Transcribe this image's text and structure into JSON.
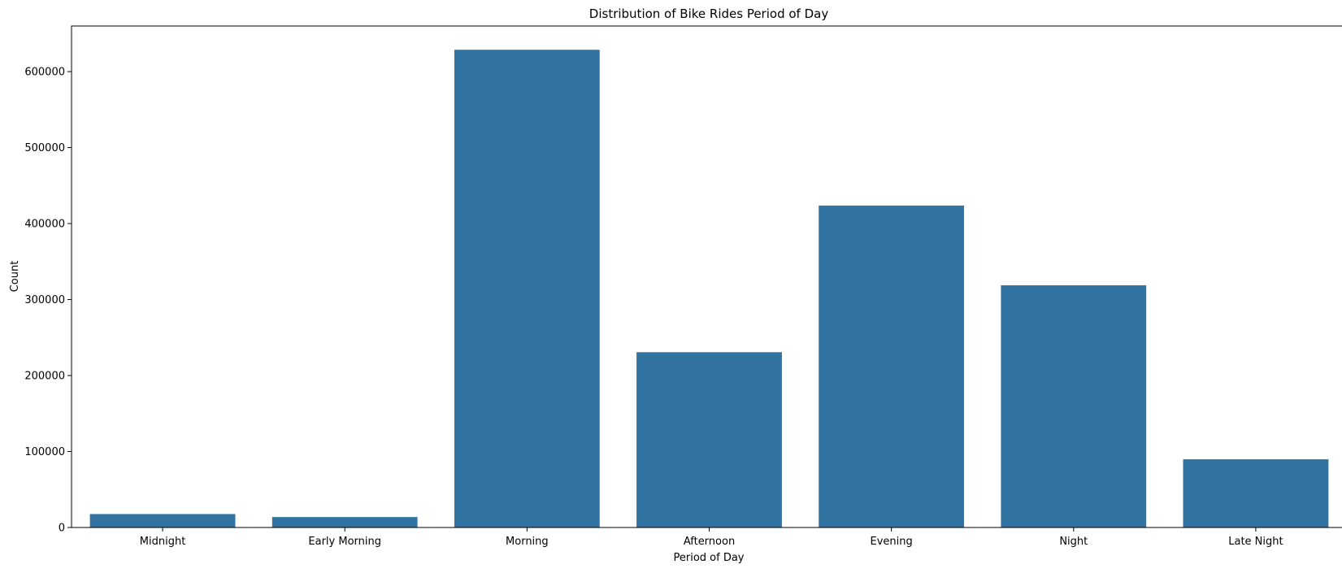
{
  "chart_data": {
    "type": "bar",
    "title": "Distribution of Bike Rides Period of Day",
    "xlabel": "Period of Day",
    "ylabel": "Count",
    "categories": [
      "Midnight",
      "Early Morning",
      "Morning",
      "Afternoon",
      "Evening",
      "Night",
      "Late Night"
    ],
    "values": [
      18000,
      14000,
      629000,
      231000,
      424000,
      319000,
      90000
    ],
    "ylim": [
      0,
      660000
    ],
    "yticks": [
      0,
      100000,
      200000,
      300000,
      400000,
      500000,
      600000
    ],
    "ytick_labels": [
      "0",
      "100000",
      "200000",
      "300000",
      "400000",
      "500000",
      "600000"
    ],
    "grid": false,
    "bar_color": "#3274a1",
    "edge_color": "#ffffff"
  }
}
